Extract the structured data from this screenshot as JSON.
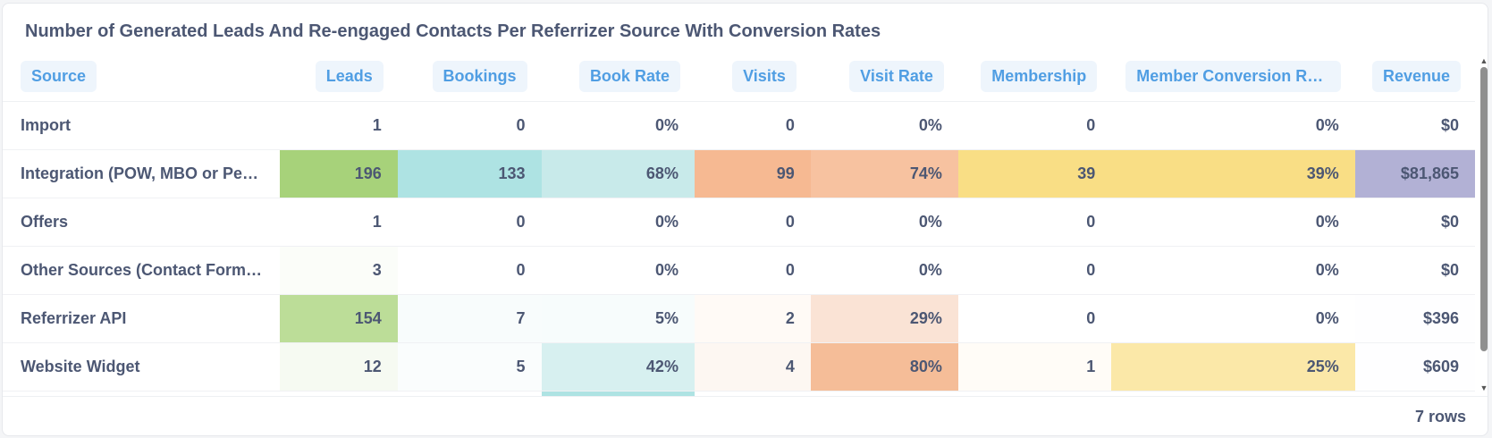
{
  "title": "Number of Generated Leads And Re-engaged Contacts Per Referrizer Source With Conversion Rates",
  "columns": [
    {
      "key": "source",
      "label": "Source",
      "align": "text"
    },
    {
      "key": "leads",
      "label": "Leads",
      "align": "num"
    },
    {
      "key": "bookings",
      "label": "Bookings",
      "align": "num"
    },
    {
      "key": "book_rate",
      "label": "Book Rate",
      "align": "num"
    },
    {
      "key": "visits",
      "label": "Visits",
      "align": "num"
    },
    {
      "key": "visit_rate",
      "label": "Visit Rate",
      "align": "num"
    },
    {
      "key": "membership",
      "label": "Membership",
      "align": "num"
    },
    {
      "key": "member_conv",
      "label": "Member Conversion Ra…",
      "align": "num"
    },
    {
      "key": "revenue",
      "label": "Revenue",
      "align": "num"
    }
  ],
  "rows": [
    {
      "cells": [
        "Import",
        "1",
        "0",
        "0%",
        "0",
        "0%",
        "0",
        "0%",
        "$0"
      ],
      "colors": [
        "",
        "",
        "",
        "",
        "",
        "",
        "",
        "",
        ""
      ]
    },
    {
      "cells": [
        "Integration (POW, MBO or Pea…",
        "196",
        "133",
        "68%",
        "99",
        "74%",
        "39",
        "39%",
        "$81,865"
      ],
      "colors": [
        "",
        "#a7d27a",
        "#aee3e3",
        "#c8eaea",
        "#f6b992",
        "#f7c2a0",
        "#f9de85",
        "#f9de85",
        "#b2b1d5"
      ]
    },
    {
      "cells": [
        "Offers",
        "1",
        "0",
        "0%",
        "0",
        "0%",
        "0",
        "0%",
        "$0"
      ],
      "colors": [
        "",
        "",
        "",
        "",
        "",
        "",
        "",
        "",
        ""
      ]
    },
    {
      "cells": [
        "Other Sources (Contact Form, …",
        "3",
        "0",
        "0%",
        "0",
        "0%",
        "0",
        "0%",
        "$0"
      ],
      "colors": [
        "",
        "#fbfdf9",
        "",
        "",
        "",
        "",
        "",
        "",
        ""
      ]
    },
    {
      "cells": [
        "Referrizer API",
        "154",
        "7",
        "5%",
        "2",
        "29%",
        "0",
        "0%",
        "$396"
      ],
      "colors": [
        "",
        "#bcdd98",
        "#f8fcfc",
        "#f7fcfc",
        "#fffaf6",
        "#fae3d5",
        "",
        "",
        "#fefeff"
      ]
    },
    {
      "cells": [
        "Website Widget",
        "12",
        "5",
        "42%",
        "4",
        "80%",
        "1",
        "25%",
        "$609"
      ],
      "colors": [
        "",
        "#f6faf2",
        "#fafdfd",
        "#d7f0f0",
        "#fdf7f2",
        "#f5bd98",
        "#fffcf7",
        "#fbe8a8",
        "#fefeff"
      ]
    },
    {
      "cells": [
        "",
        "",
        "",
        "",
        "",
        "",
        "",
        "",
        ""
      ],
      "colors": [
        "",
        "",
        "",
        "#aee3e3",
        "",
        "",
        "",
        "",
        ""
      ]
    }
  ],
  "footer": {
    "row_count": "7 rows"
  },
  "icons": {
    "scroll_up": "scroll-up-arrow-icon",
    "scroll_down": "scroll-down-arrow-icon"
  }
}
